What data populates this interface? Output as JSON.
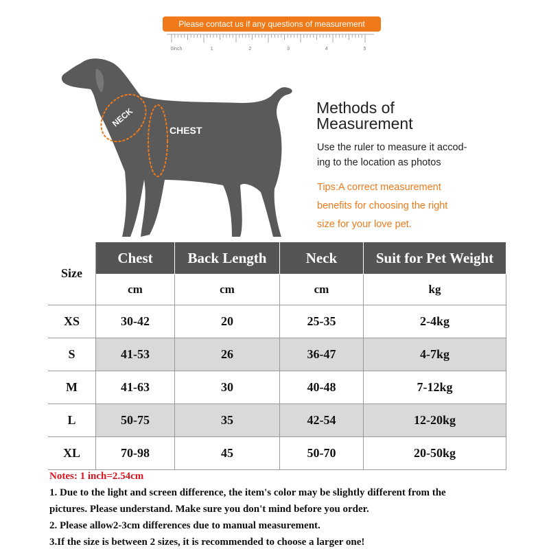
{
  "banner": "Please contact us if any questions of measurement",
  "ruler": [
    "0inch",
    "1",
    "2",
    "3",
    "4",
    "5"
  ],
  "dog": {
    "neck": "NECK",
    "chest": "CHEST"
  },
  "method": {
    "title": [
      "Methods of",
      "Measurement"
    ],
    "description": [
      "Use the ruler to measure it accod-",
      "ing to the location as photos"
    ],
    "tips": [
      "Tips:A correct measurement",
      "benefits for choosing the right",
      "size for your love pet."
    ]
  },
  "table": {
    "columns": [
      "Size",
      "Chest",
      "Back Length",
      "Neck",
      "Suit for Pet Weight"
    ],
    "units": [
      "cm",
      "cm",
      "cm",
      "kg"
    ],
    "rows": [
      [
        "XS",
        "30-42",
        "20",
        "25-35",
        "2-4kg"
      ],
      [
        "S",
        "41-53",
        "26",
        "36-47",
        "4-7kg"
      ],
      [
        "M",
        "41-63",
        "30",
        "40-48",
        "7-12kg"
      ],
      [
        "L",
        "50-75",
        "35",
        "42-54",
        "12-20kg"
      ],
      [
        "XL",
        "70-98",
        "45",
        "50-70",
        "20-50kg"
      ]
    ]
  },
  "notes": {
    "title": "Notes: 1 inch=2.54cm",
    "lines": [
      "1. Due to the light and screen difference, the item's color may be slightly different from the",
      "pictures. Please understand. Make sure you don't mind before you order.",
      "2. Please allow2-3cm differences due to manual measurement.",
      "3.If the size is between 2 sizes, it is recommended to choose a larger one!"
    ]
  }
}
